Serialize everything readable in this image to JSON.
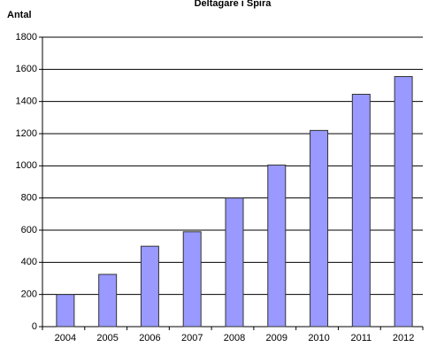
{
  "chart_data": {
    "type": "bar",
    "title": "Deltagare i Spira",
    "y_label": "Antal",
    "categories": [
      "2004",
      "2005",
      "2006",
      "2007",
      "2008",
      "2009",
      "2010",
      "2011",
      "2012"
    ],
    "values": [
      200,
      325,
      500,
      590,
      800,
      1005,
      1220,
      1445,
      1555
    ],
    "color": "#9999ff",
    "ylim": [
      0,
      1800
    ],
    "yticks": [
      0,
      200,
      400,
      600,
      800,
      1000,
      1200,
      1400,
      1600,
      1800
    ],
    "grid": true
  }
}
